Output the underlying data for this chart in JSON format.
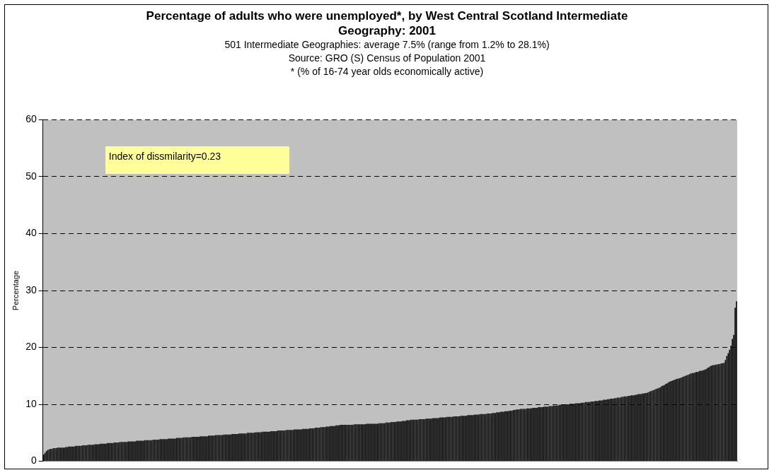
{
  "chart_data": {
    "type": "bar",
    "title": "Percentage of adults who were unemployed*, by West Central Scotland Intermediate Geography: 2001",
    "subtitle": "501 Intermediate Geographies: average 7.5% (range from 1.2% to 28.1%)",
    "annotations": [
      "Source: GRO (S) Census of Population 2001",
      "* (% of 16-74 year olds economically active)",
      "Index of dissmilarity=0.23"
    ],
    "ylabel": "Percentage",
    "color": "#000000",
    "ylim": [
      0,
      60
    ],
    "yticks": [
      0,
      10,
      20,
      30,
      40,
      50,
      60
    ],
    "grid": "y",
    "tick_labels": "y",
    "categories": [
      null,
      null,
      null,
      null,
      null,
      null,
      null,
      null,
      null,
      null,
      null,
      null,
      null,
      null,
      null,
      null,
      null,
      null,
      null,
      null,
      null,
      null,
      null,
      null,
      null,
      null,
      null,
      null,
      null,
      null,
      null,
      null,
      null,
      null,
      null,
      null,
      null,
      null,
      null,
      null,
      null,
      null,
      null,
      null,
      null,
      null,
      null,
      null,
      null,
      null,
      null,
      null,
      null,
      null,
      null,
      null,
      null,
      null,
      null,
      null,
      null,
      null,
      null,
      null,
      null,
      null,
      null,
      null,
      null,
      null,
      null,
      null,
      null,
      null,
      null,
      null,
      null,
      null,
      null,
      null,
      null,
      null,
      null,
      null,
      null,
      null,
      null,
      null,
      null,
      null,
      null,
      null,
      null,
      null,
      null,
      null,
      null,
      null,
      null,
      null,
      null,
      null,
      null,
      null,
      null,
      null,
      null,
      null,
      null,
      null,
      null,
      null,
      null,
      null,
      null,
      null,
      null,
      null,
      null,
      null,
      null,
      null,
      null,
      null,
      null,
      null,
      null,
      null,
      null,
      null,
      null,
      null,
      null,
      null,
      null,
      null,
      null,
      null,
      null,
      null,
      null,
      null,
      null,
      null,
      null,
      null,
      null,
      null,
      null,
      null,
      null,
      null,
      null,
      null,
      null,
      null,
      null,
      null,
      null,
      null,
      null,
      null,
      null,
      null,
      null,
      null,
      null,
      null,
      null,
      null,
      null,
      null,
      null,
      null,
      null,
      null,
      null,
      null,
      null,
      null,
      null,
      null,
      null,
      null,
      null,
      null,
      null,
      null,
      null,
      null,
      null,
      null,
      null,
      null,
      null,
      null,
      null,
      null,
      null,
      null,
      null,
      null,
      null,
      null,
      null,
      null,
      null,
      null,
      null,
      null,
      null,
      null,
      null,
      null,
      null,
      null,
      null,
      null,
      null,
      null,
      null,
      null,
      null,
      null,
      null,
      null,
      null,
      null,
      null,
      null,
      null,
      null,
      null,
      null,
      null,
      null,
      null,
      null,
      null,
      null,
      null,
      null,
      null,
      null,
      null,
      null,
      null,
      null,
      null,
      null,
      null,
      null,
      null,
      null,
      null,
      null,
      null,
      null,
      null,
      null,
      null,
      null,
      null,
      null,
      null,
      null,
      null,
      null,
      null,
      null,
      null,
      null,
      null,
      null,
      null,
      null,
      null,
      null,
      null,
      null,
      null,
      null,
      null,
      null,
      null,
      null,
      null,
      null,
      null,
      null,
      null,
      null,
      null,
      null,
      null,
      null,
      null,
      null,
      null,
      null,
      null,
      null,
      null,
      null,
      null,
      null,
      null,
      null,
      null,
      null,
      null,
      null,
      null,
      null,
      null,
      null,
      null,
      null,
      null,
      null,
      null,
      null,
      null,
      null,
      null,
      null,
      null,
      null,
      null,
      null,
      null,
      null,
      null,
      null,
      null,
      null,
      null,
      null,
      null,
      null,
      null,
      null,
      null,
      null,
      null,
      null,
      null,
      null,
      null,
      null,
      null,
      null,
      null,
      null,
      null,
      null,
      null,
      null,
      null,
      null,
      null,
      null,
      null,
      null,
      null,
      null,
      null,
      null,
      null,
      null,
      null,
      null,
      null,
      null,
      null,
      null,
      null,
      null,
      null,
      null,
      null,
      null,
      null,
      null,
      null,
      null,
      null,
      null,
      null,
      null,
      null,
      null,
      null,
      null,
      null,
      null,
      null,
      null,
      null,
      null,
      null,
      null,
      null,
      null,
      null,
      null,
      null,
      null,
      null,
      null,
      null,
      null,
      null,
      null,
      null,
      null,
      null,
      null,
      null,
      null,
      null,
      null,
      null,
      null,
      null,
      null,
      null,
      null,
      null,
      null,
      null,
      null,
      null,
      null,
      null,
      null,
      null,
      null,
      null,
      null,
      null,
      null,
      null,
      null,
      null,
      null,
      null,
      null,
      null,
      null,
      null,
      null,
      null,
      null,
      null,
      null,
      null,
      null,
      null,
      null,
      null,
      null,
      null,
      null,
      null,
      null,
      null,
      null,
      null,
      null,
      null,
      null,
      null,
      null,
      null,
      null,
      null,
      null,
      null,
      null,
      null,
      null,
      null,
      null,
      null,
      null,
      null,
      null,
      null,
      null,
      null,
      null,
      null,
      null,
      null,
      null,
      null,
      null,
      null,
      null,
      null
    ],
    "values": [
      1.2,
      1.5,
      1.8,
      2.0,
      2.1,
      2.2,
      2.2,
      2.3,
      2.3,
      2.3,
      2.4,
      2.4,
      2.4,
      2.4,
      2.4,
      2.4,
      2.5,
      2.5,
      2.6,
      2.6,
      2.6,
      2.6,
      2.6,
      2.7,
      2.7,
      2.7,
      2.7,
      2.7,
      2.8,
      2.8,
      2.8,
      2.8,
      2.9,
      2.9,
      2.9,
      2.9,
      2.9,
      3.0,
      3.0,
      3.0,
      3.0,
      3.1,
      3.1,
      3.1,
      3.1,
      3.1,
      3.2,
      3.2,
      3.2,
      3.2,
      3.2,
      3.3,
      3.3,
      3.3,
      3.3,
      3.4,
      3.4,
      3.4,
      3.4,
      3.4,
      3.4,
      3.5,
      3.5,
      3.5,
      3.5,
      3.5,
      3.5,
      3.6,
      3.6,
      3.6,
      3.6,
      3.6,
      3.6,
      3.7,
      3.7,
      3.7,
      3.7,
      3.7,
      3.7,
      3.8,
      3.8,
      3.8,
      3.8,
      3.8,
      3.9,
      3.9,
      3.9,
      3.9,
      3.9,
      3.9,
      4.0,
      4.0,
      4.0,
      4.0,
      4.0,
      4.0,
      4.1,
      4.1,
      4.1,
      4.1,
      4.1,
      4.2,
      4.2,
      4.2,
      4.2,
      4.2,
      4.2,
      4.3,
      4.3,
      4.3,
      4.3,
      4.3,
      4.3,
      4.4,
      4.4,
      4.4,
      4.4,
      4.4,
      4.4,
      4.5,
      4.5,
      4.5,
      4.5,
      4.5,
      4.6,
      4.6,
      4.6,
      4.6,
      4.6,
      4.6,
      4.7,
      4.7,
      4.7,
      4.7,
      4.7,
      4.7,
      4.8,
      4.8,
      4.8,
      4.8,
      4.8,
      4.9,
      4.9,
      4.9,
      4.9,
      4.9,
      4.9,
      5.0,
      5.0,
      5.0,
      5.0,
      5.0,
      5.0,
      5.1,
      5.1,
      5.1,
      5.1,
      5.1,
      5.2,
      5.2,
      5.2,
      5.2,
      5.2,
      5.2,
      5.3,
      5.3,
      5.3,
      5.3,
      5.3,
      5.4,
      5.4,
      5.4,
      5.4,
      5.4,
      5.4,
      5.5,
      5.5,
      5.5,
      5.5,
      5.5,
      5.5,
      5.6,
      5.6,
      5.6,
      5.6,
      5.6,
      5.6,
      5.7,
      5.7,
      5.7,
      5.7,
      5.7,
      5.8,
      5.8,
      5.8,
      5.8,
      5.9,
      5.9,
      5.9,
      5.9,
      6.0,
      6.0,
      6.0,
      6.0,
      6.1,
      6.1,
      6.1,
      6.2,
      6.2,
      6.2,
      6.2,
      6.3,
      6.3,
      6.3,
      6.4,
      6.4,
      6.4,
      6.4,
      6.4,
      6.4,
      6.4,
      6.4,
      6.4,
      6.4,
      6.5,
      6.5,
      6.5,
      6.5,
      6.5,
      6.5,
      6.5,
      6.5,
      6.5,
      6.6,
      6.6,
      6.6,
      6.6,
      6.6,
      6.6,
      6.6,
      6.6,
      6.6,
      6.7,
      6.7,
      6.7,
      6.7,
      6.7,
      6.8,
      6.8,
      6.8,
      6.8,
      6.9,
      6.9,
      6.9,
      6.9,
      7.0,
      7.0,
      7.0,
      7.0,
      7.1,
      7.1,
      7.1,
      7.2,
      7.2,
      7.2,
      7.3,
      7.3,
      7.3,
      7.3,
      7.3,
      7.3,
      7.4,
      7.4,
      7.4,
      7.4,
      7.4,
      7.5,
      7.5,
      7.5,
      7.5,
      7.5,
      7.6,
      7.6,
      7.6,
      7.6,
      7.6,
      7.7,
      7.7,
      7.7,
      7.7,
      7.7,
      7.8,
      7.8,
      7.8,
      7.8,
      7.8,
      7.9,
      7.9,
      7.9,
      7.9,
      7.9,
      8.0,
      8.0,
      8.0,
      8.0,
      8.0,
      8.1,
      8.1,
      8.1,
      8.1,
      8.1,
      8.2,
      8.2,
      8.2,
      8.2,
      8.3,
      8.3,
      8.3,
      8.3,
      8.3,
      8.4,
      8.4,
      8.4,
      8.4,
      8.5,
      8.5,
      8.5,
      8.6,
      8.6,
      8.6,
      8.7,
      8.7,
      8.7,
      8.8,
      8.8,
      8.8,
      8.9,
      8.9,
      8.9,
      9.0,
      9.0,
      9.1,
      9.1,
      9.1,
      9.2,
      9.2,
      9.2,
      9.2,
      9.2,
      9.3,
      9.3,
      9.3,
      9.3,
      9.4,
      9.4,
      9.4,
      9.4,
      9.5,
      9.5,
      9.5,
      9.5,
      9.6,
      9.6,
      9.6,
      9.6,
      9.7,
      9.7,
      9.7,
      9.8,
      9.8,
      9.8,
      9.8,
      9.9,
      9.9,
      9.9,
      10.0,
      10.0,
      10.0,
      10.0,
      10.0,
      10.1,
      10.1,
      10.1,
      10.1,
      10.2,
      10.2,
      10.2,
      10.2,
      10.3,
      10.3,
      10.3,
      10.4,
      10.4,
      10.4,
      10.4,
      10.5,
      10.5,
      10.5,
      10.6,
      10.6,
      10.6,
      10.7,
      10.7,
      10.7,
      10.8,
      10.8,
      10.8,
      10.9,
      10.9,
      11.0,
      11.0,
      11.0,
      11.1,
      11.1,
      11.2,
      11.2,
      11.2,
      11.3,
      11.3,
      11.4,
      11.4,
      11.4,
      11.5,
      11.5,
      11.6,
      11.6,
      11.6,
      11.7,
      11.7,
      11.8,
      11.8,
      11.8,
      11.9,
      11.9,
      12.0,
      12.0,
      12.1,
      12.2,
      12.3,
      12.4,
      12.5,
      12.6,
      12.7,
      12.8,
      12.9,
      13.0,
      13.2,
      13.3,
      13.4,
      13.6,
      13.7,
      13.9,
      14.0,
      14.1,
      14.2,
      14.3,
      14.4,
      14.5,
      14.5,
      14.6,
      14.7,
      14.8,
      14.9,
      15.0,
      15.1,
      15.2,
      15.3,
      15.4,
      15.5,
      15.5,
      15.6,
      15.7,
      15.7,
      15.8,
      15.9,
      15.9,
      16.0,
      16.1,
      16.2,
      16.4,
      16.5,
      16.7,
      16.8,
      16.9,
      16.9,
      17.0,
      17.0,
      17.1,
      17.1,
      17.2,
      17.2,
      17.3,
      17.8,
      18.5,
      19.0,
      19.6,
      20.3,
      21.5,
      22.2,
      27.0,
      28.1
    ]
  }
}
